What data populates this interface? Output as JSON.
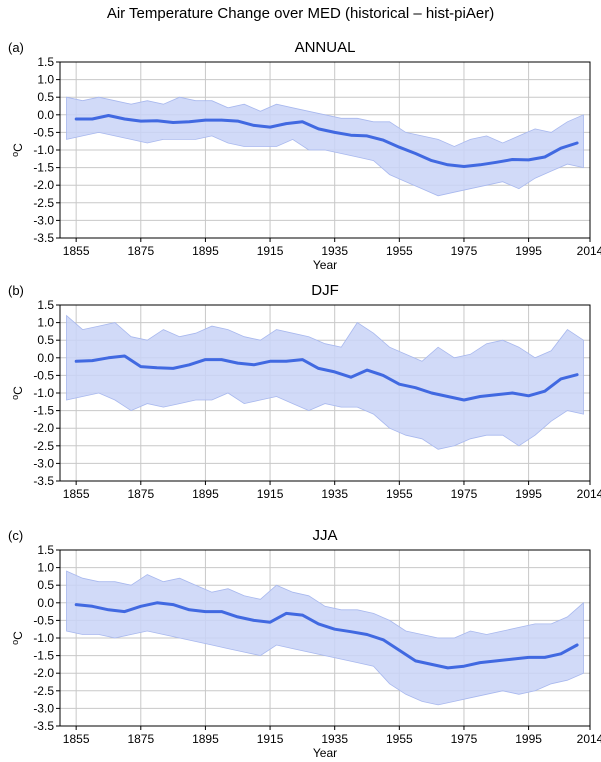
{
  "figure_title": "Air Temperature Change over MED (historical – hist-piAer)",
  "colors": {
    "line": "#4169e1",
    "band": "#c9d3f7",
    "band_edge": "#a8b8ee",
    "grid": "#c8c8c8"
  },
  "chart_data": [
    {
      "type": "area",
      "panel": "(a)",
      "title": "ANNUAL",
      "xlabel": "Year",
      "ylabel": "°C",
      "ylabel_parts": {
        "degree": "o",
        "unit": "C"
      },
      "xlim": [
        1850,
        2014
      ],
      "ylim": [
        -3.5,
        1.5
      ],
      "xticks": [
        1855,
        1875,
        1895,
        1915,
        1935,
        1955,
        1975,
        1995,
        2014
      ],
      "xtick_labels": [
        "1855",
        "1875",
        "1895",
        "1915",
        "1935",
        "1955",
        "1975",
        "1995",
        "2014"
      ],
      "yticks": [
        1.5,
        1.0,
        0.5,
        0.0,
        -0.5,
        -1.0,
        -1.5,
        -2.0,
        -2.5,
        -3.0,
        -3.5
      ],
      "ytick_labels": [
        "1.5",
        "1.0",
        "0.5",
        "0.0",
        "-0.5",
        "-1.0",
        "-1.5",
        "-2.0",
        "-2.5",
        "-3.0",
        "-3.5"
      ],
      "grid": true,
      "series": [
        {
          "kind": "line",
          "x": [
            1855,
            1860,
            1865,
            1870,
            1875,
            1880,
            1885,
            1890,
            1895,
            1900,
            1905,
            1910,
            1915,
            1920,
            1925,
            1930,
            1935,
            1940,
            1945,
            1950,
            1955,
            1960,
            1965,
            1970,
            1975,
            1980,
            1985,
            1990,
            1995,
            2000,
            2005,
            2010
          ],
          "y": [
            -0.12,
            -0.12,
            -0.02,
            -0.12,
            -0.18,
            -0.17,
            -0.22,
            -0.2,
            -0.15,
            -0.15,
            -0.18,
            -0.3,
            -0.35,
            -0.25,
            -0.2,
            -0.4,
            -0.5,
            -0.58,
            -0.6,
            -0.72,
            -0.92,
            -1.1,
            -1.3,
            -1.42,
            -1.47,
            -1.42,
            -1.35,
            -1.27,
            -1.28,
            -1.2,
            -0.95,
            -0.8
          ]
        },
        {
          "kind": "band",
          "x": [
            1852,
            1857,
            1862,
            1867,
            1872,
            1877,
            1882,
            1887,
            1892,
            1897,
            1902,
            1907,
            1912,
            1917,
            1922,
            1927,
            1932,
            1937,
            1942,
            1947,
            1952,
            1957,
            1962,
            1967,
            1972,
            1977,
            1982,
            1987,
            1992,
            1997,
            2002,
            2007,
            2012
          ],
          "upper": [
            0.5,
            0.4,
            0.5,
            0.4,
            0.3,
            0.4,
            0.3,
            0.5,
            0.4,
            0.4,
            0.2,
            0.3,
            0.1,
            0.3,
            0.2,
            0.1,
            0.0,
            -0.1,
            -0.1,
            -0.2,
            -0.2,
            -0.5,
            -0.6,
            -0.7,
            -0.9,
            -0.7,
            -0.6,
            -0.8,
            -0.6,
            -0.4,
            -0.5,
            -0.2,
            0.0
          ],
          "lower": [
            -0.7,
            -0.6,
            -0.5,
            -0.6,
            -0.7,
            -0.8,
            -0.7,
            -0.7,
            -0.7,
            -0.6,
            -0.8,
            -0.9,
            -0.9,
            -0.9,
            -0.7,
            -1.0,
            -1.0,
            -1.1,
            -1.2,
            -1.3,
            -1.7,
            -1.9,
            -2.1,
            -2.3,
            -2.2,
            -2.1,
            -2.0,
            -1.9,
            -2.1,
            -1.8,
            -1.6,
            -1.4,
            -1.5
          ]
        }
      ]
    },
    {
      "type": "area",
      "panel": "(b)",
      "title": "DJF",
      "xlabel": "",
      "ylabel": "°C",
      "ylabel_parts": {
        "degree": "o",
        "unit": "C"
      },
      "xlim": [
        1850,
        2014
      ],
      "ylim": [
        -3.5,
        1.5
      ],
      "xticks": [
        1855,
        1875,
        1895,
        1915,
        1935,
        1955,
        1975,
        1995,
        2014
      ],
      "xtick_labels": [
        "1855",
        "1875",
        "1895",
        "1915",
        "1935",
        "1955",
        "1975",
        "1995",
        "2014"
      ],
      "yticks": [
        1.5,
        1.0,
        0.5,
        0.0,
        -0.5,
        -1.0,
        -1.5,
        -2.0,
        -2.5,
        -3.0,
        -3.5
      ],
      "ytick_labels": [
        "1.5",
        "1.0",
        "0.5",
        "0.0",
        "-0.5",
        "-1.0",
        "-1.5",
        "-2.0",
        "-2.5",
        "-3.0",
        "-3.5"
      ],
      "grid": true,
      "series": [
        {
          "kind": "line",
          "x": [
            1855,
            1860,
            1865,
            1870,
            1875,
            1880,
            1885,
            1890,
            1895,
            1900,
            1905,
            1910,
            1915,
            1920,
            1925,
            1930,
            1935,
            1940,
            1945,
            1950,
            1955,
            1960,
            1965,
            1970,
            1975,
            1980,
            1985,
            1990,
            1995,
            2000,
            2005,
            2010
          ],
          "y": [
            -0.1,
            -0.08,
            0.0,
            0.05,
            -0.25,
            -0.28,
            -0.3,
            -0.2,
            -0.05,
            -0.05,
            -0.15,
            -0.2,
            -0.1,
            -0.1,
            -0.05,
            -0.3,
            -0.4,
            -0.55,
            -0.35,
            -0.5,
            -0.75,
            -0.85,
            -1.0,
            -1.1,
            -1.2,
            -1.1,
            -1.05,
            -1.0,
            -1.08,
            -0.95,
            -0.6,
            -0.48
          ]
        },
        {
          "kind": "band",
          "x": [
            1852,
            1857,
            1862,
            1867,
            1872,
            1877,
            1882,
            1887,
            1892,
            1897,
            1902,
            1907,
            1912,
            1917,
            1922,
            1927,
            1932,
            1937,
            1942,
            1947,
            1952,
            1957,
            1962,
            1967,
            1972,
            1977,
            1982,
            1987,
            1992,
            1997,
            2002,
            2007,
            2012
          ],
          "upper": [
            1.2,
            0.8,
            0.9,
            1.0,
            0.6,
            0.5,
            0.8,
            0.6,
            0.7,
            0.9,
            0.8,
            0.6,
            0.5,
            0.8,
            0.7,
            0.6,
            0.4,
            0.3,
            1.0,
            0.7,
            0.3,
            0.1,
            -0.1,
            0.3,
            0.0,
            0.1,
            0.4,
            0.5,
            0.3,
            0.0,
            0.2,
            0.8,
            0.5
          ],
          "lower": [
            -1.2,
            -1.1,
            -1.0,
            -1.2,
            -1.5,
            -1.3,
            -1.4,
            -1.3,
            -1.2,
            -1.2,
            -1.0,
            -1.3,
            -1.2,
            -1.1,
            -1.3,
            -1.5,
            -1.3,
            -1.4,
            -1.4,
            -1.6,
            -2.0,
            -2.2,
            -2.3,
            -2.6,
            -2.5,
            -2.3,
            -2.2,
            -2.2,
            -2.5,
            -2.2,
            -1.8,
            -1.5,
            -1.6
          ]
        }
      ]
    },
    {
      "type": "area",
      "panel": "(c)",
      "title": "JJA",
      "xlabel": "Year",
      "ylabel": "°C",
      "ylabel_parts": {
        "degree": "o",
        "unit": "C"
      },
      "xlim": [
        1850,
        2014
      ],
      "ylim": [
        -3.5,
        1.5
      ],
      "xticks": [
        1855,
        1875,
        1895,
        1915,
        1935,
        1955,
        1975,
        1995,
        2014
      ],
      "xtick_labels": [
        "1855",
        "1875",
        "1895",
        "1915",
        "1935",
        "1955",
        "1975",
        "1995",
        "2014"
      ],
      "yticks": [
        1.5,
        1.0,
        0.5,
        0.0,
        -0.5,
        -1.0,
        -1.5,
        -2.0,
        -2.5,
        -3.0,
        -3.5
      ],
      "ytick_labels": [
        "1.5",
        "1.0",
        "0.5",
        "0.0",
        "-0.5",
        "-1.0",
        "-1.5",
        "-2.0",
        "-2.5",
        "-3.0",
        "-3.5"
      ],
      "grid": true,
      "series": [
        {
          "kind": "line",
          "x": [
            1855,
            1860,
            1865,
            1870,
            1875,
            1880,
            1885,
            1890,
            1895,
            1900,
            1905,
            1910,
            1915,
            1920,
            1925,
            1930,
            1935,
            1940,
            1945,
            1950,
            1955,
            1960,
            1965,
            1970,
            1975,
            1980,
            1985,
            1990,
            1995,
            2000,
            2005,
            2010
          ],
          "y": [
            -0.05,
            -0.1,
            -0.2,
            -0.25,
            -0.1,
            0.0,
            -0.05,
            -0.2,
            -0.25,
            -0.25,
            -0.4,
            -0.5,
            -0.55,
            -0.3,
            -0.35,
            -0.6,
            -0.75,
            -0.82,
            -0.9,
            -1.05,
            -1.35,
            -1.65,
            -1.75,
            -1.85,
            -1.8,
            -1.7,
            -1.65,
            -1.6,
            -1.55,
            -1.55,
            -1.45,
            -1.2
          ]
        },
        {
          "kind": "band",
          "x": [
            1852,
            1857,
            1862,
            1867,
            1872,
            1877,
            1882,
            1887,
            1892,
            1897,
            1902,
            1907,
            1912,
            1917,
            1922,
            1927,
            1932,
            1937,
            1942,
            1947,
            1952,
            1957,
            1962,
            1967,
            1972,
            1977,
            1982,
            1987,
            1992,
            1997,
            2002,
            2007,
            2012
          ],
          "upper": [
            0.9,
            0.7,
            0.6,
            0.6,
            0.5,
            0.8,
            0.6,
            0.7,
            0.5,
            0.3,
            0.4,
            0.2,
            0.1,
            0.5,
            0.3,
            0.2,
            -0.1,
            -0.2,
            -0.2,
            -0.3,
            -0.5,
            -0.8,
            -0.9,
            -1.0,
            -1.0,
            -0.8,
            -0.9,
            -0.8,
            -0.7,
            -0.6,
            -0.6,
            -0.4,
            0.0
          ],
          "lower": [
            -0.8,
            -0.9,
            -0.9,
            -1.0,
            -0.9,
            -0.8,
            -0.9,
            -1.0,
            -1.1,
            -1.2,
            -1.3,
            -1.4,
            -1.5,
            -1.2,
            -1.3,
            -1.4,
            -1.5,
            -1.6,
            -1.7,
            -1.8,
            -2.3,
            -2.6,
            -2.8,
            -2.9,
            -2.8,
            -2.7,
            -2.6,
            -2.5,
            -2.6,
            -2.5,
            -2.3,
            -2.2,
            -2.0
          ]
        }
      ]
    }
  ]
}
